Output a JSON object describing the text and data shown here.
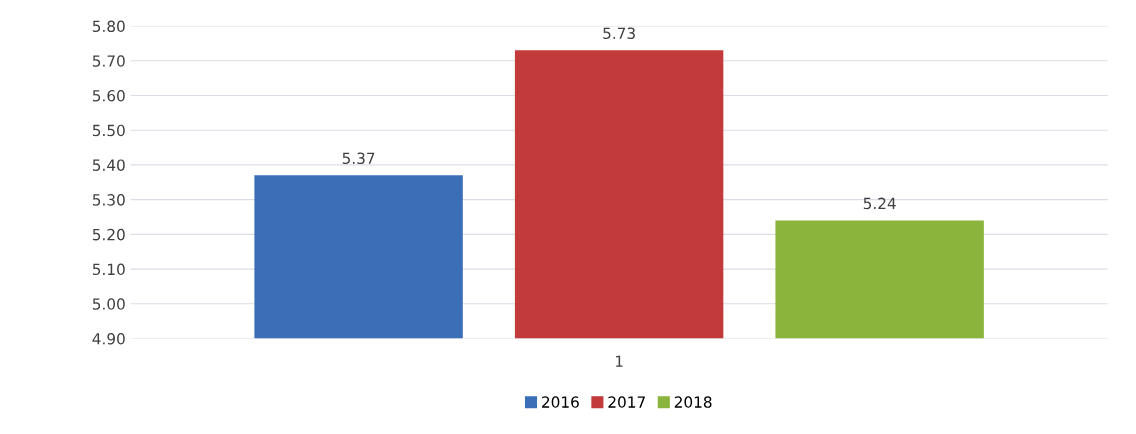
{
  "chart_data": {
    "type": "bar",
    "categories": [
      "1"
    ],
    "series": [
      {
        "name": "2016",
        "color": "#3a6fb8",
        "values": [
          5.37
        ]
      },
      {
        "name": "2017",
        "color": "#c23a3a",
        "values": [
          5.73
        ]
      },
      {
        "name": "2018",
        "color": "#8bb43c",
        "values": [
          5.24
        ]
      }
    ],
    "ylim": [
      4.9,
      5.8
    ],
    "yticks": [
      {
        "value": 4.9,
        "label": "4.90"
      },
      {
        "value": 5.0,
        "label": "5.00"
      },
      {
        "value": 5.1,
        "label": "5.10"
      },
      {
        "value": 5.2,
        "label": "5.20"
      },
      {
        "value": 5.3,
        "label": "5.30"
      },
      {
        "value": 5.4,
        "label": "5.40"
      },
      {
        "value": 5.5,
        "label": "5.50"
      },
      {
        "value": 5.6,
        "label": "5.60"
      },
      {
        "value": 5.7,
        "label": "5.70"
      },
      {
        "value": 5.8,
        "label": "5.80"
      }
    ],
    "grid": "y",
    "legend": "bottom",
    "data_labels": true
  }
}
